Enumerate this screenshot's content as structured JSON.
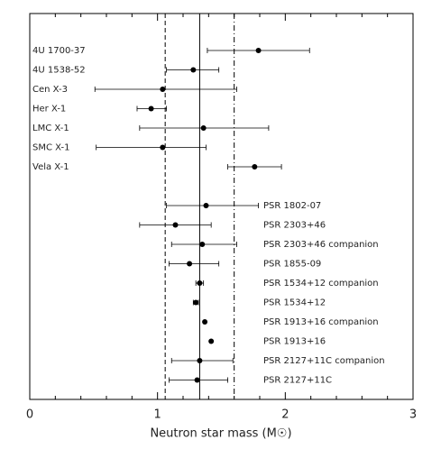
{
  "chart_data": {
    "type": "errorbar-dot",
    "xlabel": "Neutron star mass (M☉)",
    "categories": [
      "4U 1700-37",
      "4U 1538-52",
      "Cen X-3",
      "Her X-1",
      "LMC X-1",
      "SMC X-1",
      "Vela X-1",
      "PSR 1802-07",
      "PSR 2303+46",
      "PSR 2303+46 companion",
      "PSR 1855-09",
      "PSR 1534+12 companion",
      "PSR 1534+12",
      "PSR 1913+16 companion",
      "PSR 1913+16",
      "PSR 2127+11C companion",
      "PSR 2127+11C"
    ],
    "values": [
      1.79,
      1.28,
      1.04,
      0.95,
      1.36,
      1.04,
      1.76,
      1.38,
      1.14,
      1.35,
      1.25,
      1.33,
      1.3,
      1.37,
      1.42,
      1.33,
      1.31
    ],
    "lower": [
      1.39,
      1.07,
      0.51,
      0.84,
      0.86,
      0.52,
      1.55,
      1.07,
      0.86,
      1.11,
      1.09,
      1.3,
      1.28,
      null,
      null,
      1.11,
      1.09
    ],
    "upper": [
      2.19,
      1.48,
      1.62,
      1.07,
      1.87,
      1.38,
      1.97,
      1.79,
      1.42,
      1.62,
      1.48,
      1.36,
      1.32,
      null,
      null,
      1.59,
      1.55
    ],
    "color": "#000000",
    "reference_lines": [
      {
        "value": 1.06,
        "style": "dashed"
      },
      {
        "value": 1.33,
        "style": "solid"
      },
      {
        "value": 1.6,
        "style": "dashdot"
      }
    ],
    "xlim": [
      0,
      3
    ],
    "xticks": [
      0,
      1,
      2,
      3
    ]
  }
}
